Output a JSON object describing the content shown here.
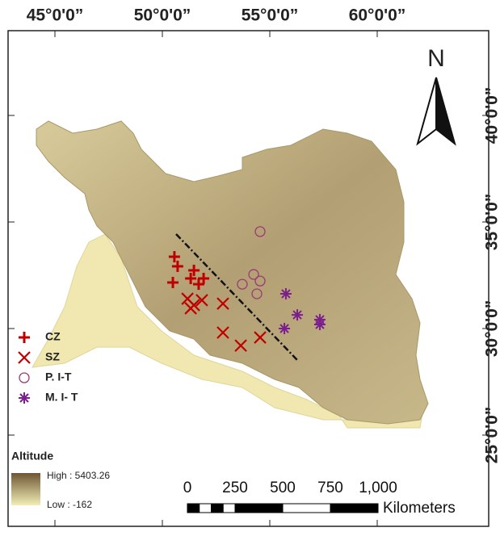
{
  "map": {
    "x_ticks": [
      {
        "value": 45,
        "label": "45°0'0”"
      },
      {
        "value": 50,
        "label": "50°0'0”"
      },
      {
        "value": 55,
        "label": "55°0'0”"
      },
      {
        "value": 60,
        "label": "60°0'0”"
      }
    ],
    "y_ticks": [
      {
        "value": 40,
        "label": "40°0'0”"
      },
      {
        "value": 35,
        "label": "35°0'0”"
      },
      {
        "value": 30,
        "label": "30°0'0”"
      },
      {
        "value": 25,
        "label": "25°0'0”"
      }
    ],
    "north": "N",
    "series": [
      {
        "name": "CZ",
        "marker": "plus",
        "color": "#c00000",
        "lon": [
          50.56,
          50.71,
          50.49,
          51.32,
          51.92,
          51.69,
          51.47
        ],
        "lat": [
          33.37,
          32.92,
          32.16,
          32.35,
          32.35,
          32.08,
          32.73
        ]
      },
      {
        "name": "SZ",
        "marker": "cross",
        "color": "#c00000",
        "lon": [
          51.17,
          51.47,
          51.84,
          52.82,
          52.82,
          53.65,
          54.55,
          51.32
        ],
        "lat": [
          31.4,
          31.1,
          31.33,
          31.17,
          29.81,
          29.2,
          29.58,
          30.95
        ]
      },
      {
        "name": "P. I-T",
        "marker": "circle",
        "color": "#9b3b73",
        "lon": [
          54.55,
          54.25,
          54.55,
          53.72,
          54.4
        ],
        "lat": [
          34.55,
          32.54,
          32.23,
          32.08,
          31.63
        ]
      },
      {
        "name": "M. I- T",
        "marker": "star",
        "color": "#7b1f8f",
        "lon": [
          55.75,
          56.28,
          55.68,
          57.33,
          57.33
        ],
        "lat": [
          31.63,
          30.64,
          30.0,
          30.42,
          30.19
        ]
      }
    ],
    "altitude": {
      "title": "Altitude",
      "high": "High : 5403.26",
      "low": "Low : -162"
    },
    "scale": {
      "ticks": [
        0,
        250,
        500,
        750,
        {
          "value": 1000,
          "label": "1,000"
        }
      ],
      "unit": "Kilometers"
    }
  }
}
